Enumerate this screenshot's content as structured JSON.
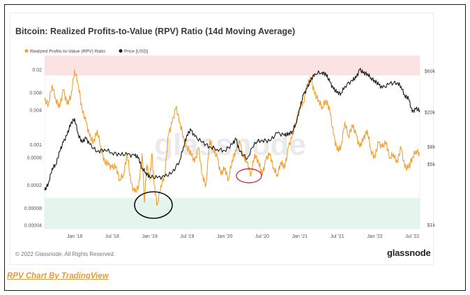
{
  "title": "Bitcoin: Realized Profits-to-Value (RPV) Ratio (14d Moving Average)",
  "copyright": "© 2022 Glassnode. All Rights Reserved.",
  "brand": "glassnode",
  "watermark": "glassnode",
  "caption": "RPV Chart By TradingView",
  "colors": {
    "rpv": "#f0a030",
    "price": "#1a1a1a",
    "top_band": "#fbe3e3",
    "bottom_band": "#e4f6ec",
    "ellipse_black": "#111111",
    "ellipse_red": "#d9303a"
  },
  "chart_data": {
    "type": "line",
    "legend": [
      "Realized Profits-to-Value (RPV) Ratio",
      "Price [USD]"
    ],
    "x_ticks": [
      "Jan '18",
      "Jul '18",
      "Jan '19",
      "Jul '19",
      "Jan '20",
      "Jul '20",
      "Jan '21",
      "Jul '21",
      "Jan '22",
      "Jul '22"
    ],
    "left_axis": {
      "scale": "log",
      "ticks": [
        "0.02",
        "0.008",
        "0.004",
        "0.001",
        "0.0006",
        "0.0002",
        "0.00008",
        "0.00004"
      ],
      "tick_values": [
        0.02,
        0.008,
        0.004,
        0.001,
        0.0006,
        0.0002,
        8e-05,
        4e-05
      ]
    },
    "right_axis": {
      "scale": "log",
      "ticks": [
        "$60k",
        "$20k",
        "$8k",
        "$5k",
        "$1k"
      ],
      "tick_values": [
        60000,
        20000,
        8000,
        5000,
        1000
      ]
    },
    "x_range": [
      2017.6,
      2022.6
    ],
    "zones": {
      "top_red_above": 0.016,
      "bottom_green_below": 0.00012
    },
    "series": [
      {
        "name": "Realized Profits-to-Value (RPV) Ratio",
        "axis": "left",
        "x": [
          2017.6,
          2017.65,
          2017.7,
          2017.75,
          2017.8,
          2017.85,
          2017.9,
          2017.95,
          2018.0,
          2018.05,
          2018.1,
          2018.15,
          2018.2,
          2018.25,
          2018.3,
          2018.35,
          2018.4,
          2018.45,
          2018.5,
          2018.55,
          2018.6,
          2018.65,
          2018.7,
          2018.75,
          2018.8,
          2018.85,
          2018.9,
          2018.93,
          2018.96,
          2019.0,
          2019.03,
          2019.06,
          2019.1,
          2019.15,
          2019.2,
          2019.25,
          2019.3,
          2019.35,
          2019.4,
          2019.45,
          2019.5,
          2019.55,
          2019.6,
          2019.65,
          2019.7,
          2019.75,
          2019.8,
          2019.85,
          2019.9,
          2019.95,
          2020.0,
          2020.05,
          2020.1,
          2020.15,
          2020.2,
          2020.25,
          2020.3,
          2020.35,
          2020.4,
          2020.45,
          2020.5,
          2020.55,
          2020.6,
          2020.65,
          2020.7,
          2020.75,
          2020.8,
          2020.85,
          2020.9,
          2020.95,
          2021.0,
          2021.05,
          2021.1,
          2021.15,
          2021.2,
          2021.25,
          2021.3,
          2021.35,
          2021.4,
          2021.45,
          2021.5,
          2021.55,
          2021.6,
          2021.65,
          2021.7,
          2021.75,
          2021.8,
          2021.85,
          2021.9,
          2021.95,
          2022.0,
          2022.05,
          2022.1,
          2022.15,
          2022.2,
          2022.25,
          2022.3,
          2022.35,
          2022.4,
          2022.45,
          2022.5,
          2022.55,
          2022.6
        ],
        "values": [
          0.006,
          0.005,
          0.011,
          0.006,
          0.0045,
          0.009,
          0.005,
          0.007,
          0.02,
          0.011,
          0.004,
          0.0025,
          0.0014,
          0.0011,
          0.0018,
          0.0009,
          0.0005,
          0.00045,
          0.0004,
          0.00042,
          0.00025,
          0.0003,
          0.0007,
          0.00022,
          0.00015,
          0.00018,
          0.0007,
          0.0001,
          0.00045,
          0.00025,
          0.0007,
          0.0002,
          9e-05,
          0.0002,
          0.0003,
          0.0015,
          0.0024,
          0.0045,
          0.0025,
          0.0014,
          0.0009,
          0.0007,
          0.0005,
          0.0009,
          0.0003,
          0.0002,
          0.0012,
          0.0008,
          0.0006,
          0.0003,
          0.0004,
          0.00025,
          0.00055,
          0.0008,
          0.0011,
          0.0006,
          0.0005,
          0.0003,
          0.0007,
          0.0005,
          0.0003,
          0.00055,
          0.0007,
          0.0004,
          0.0003,
          0.0005,
          0.0004,
          0.0009,
          0.0014,
          0.0025,
          0.0045,
          0.0055,
          0.011,
          0.014,
          0.0075,
          0.006,
          0.0045,
          0.006,
          0.004,
          0.0015,
          0.0008,
          0.0009,
          0.0025,
          0.0014,
          0.0022,
          0.0015,
          0.0009,
          0.0013,
          0.0018,
          0.0008,
          0.0006,
          0.0011,
          0.0009,
          0.0011,
          0.0006,
          0.0007,
          0.0005,
          0.0009,
          0.0004,
          0.0004,
          0.0006,
          0.0008,
          0.0007
        ]
      },
      {
        "name": "Price [USD]",
        "axis": "right",
        "x": [
          2017.6,
          2017.65,
          2017.7,
          2017.75,
          2017.8,
          2017.85,
          2017.9,
          2017.95,
          2018.0,
          2018.05,
          2018.1,
          2018.15,
          2018.2,
          2018.3,
          2018.4,
          2018.5,
          2018.6,
          2018.7,
          2018.8,
          2018.85,
          2018.9,
          2018.95,
          2019.0,
          2019.1,
          2019.2,
          2019.3,
          2019.4,
          2019.45,
          2019.5,
          2019.55,
          2019.6,
          2019.7,
          2019.8,
          2019.9,
          2020.0,
          2020.1,
          2020.15,
          2020.2,
          2020.3,
          2020.4,
          2020.5,
          2020.6,
          2020.7,
          2020.8,
          2020.85,
          2020.9,
          2020.95,
          2021.0,
          2021.05,
          2021.1,
          2021.15,
          2021.2,
          2021.3,
          2021.35,
          2021.4,
          2021.45,
          2021.5,
          2021.55,
          2021.6,
          2021.7,
          2021.75,
          2021.8,
          2021.85,
          2021.9,
          2021.95,
          2022.0,
          2022.05,
          2022.1,
          2022.2,
          2022.3,
          2022.35,
          2022.4,
          2022.45,
          2022.5,
          2022.55,
          2022.6
        ],
        "values": [
          2500,
          3000,
          4500,
          5000,
          7000,
          9000,
          11000,
          15000,
          17000,
          11000,
          9000,
          10000,
          8500,
          7000,
          7500,
          6800,
          6500,
          6500,
          6300,
          6000,
          4500,
          4000,
          3600,
          3500,
          3600,
          4000,
          5500,
          8000,
          11000,
          12500,
          10500,
          9000,
          8000,
          7500,
          7200,
          8500,
          9800,
          7000,
          5800,
          9000,
          9500,
          9300,
          11500,
          10800,
          11300,
          12000,
          15000,
          22000,
          32000,
          38000,
          48000,
          56000,
          58000,
          55000,
          45000,
          37000,
          34000,
          33000,
          40000,
          47000,
          50000,
          62000,
          57000,
          56000,
          50000,
          46000,
          42000,
          38000,
          43000,
          44000,
          40000,
          31000,
          29000,
          20000,
          22000,
          21000
        ]
      }
    ]
  }
}
